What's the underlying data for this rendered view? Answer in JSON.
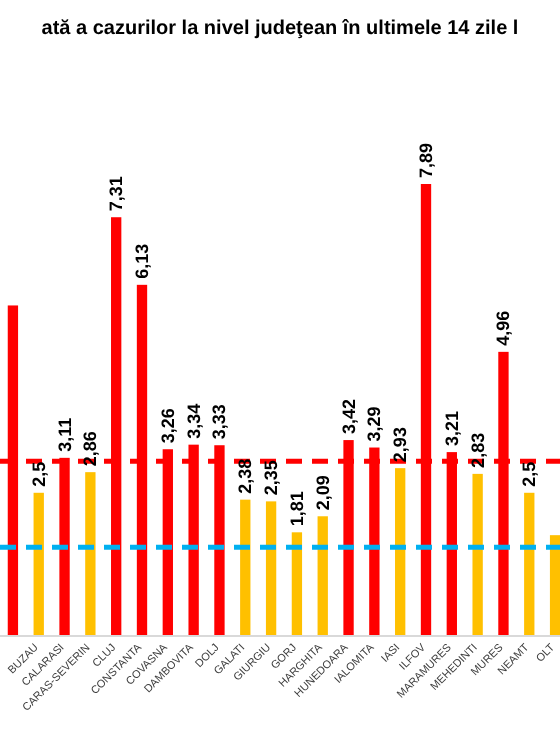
{
  "chart_data": {
    "type": "bar",
    "title": "ată a cazurilor la nivel judeţean în ultimele 14 zile l",
    "categories": [
      null,
      "BUZAU",
      "CALARASI",
      "CARAS-SEVERIN",
      "CLUJ",
      "CONSTANTA",
      "COVASNA",
      "DAMBOVITA",
      "DOLJ",
      "GALATI",
      "GIURGIU",
      "GORJ",
      "HARGHITA",
      "HUNEDOARA",
      "IALOMITA",
      "IASI",
      "ILFOV",
      "MARAMURES",
      "MEHEDINTI",
      "MURES",
      "NEAMT",
      "OLT"
    ],
    "values": [
      5.77,
      2.5,
      3.11,
      2.86,
      7.31,
      6.13,
      3.26,
      3.34,
      3.33,
      2.38,
      2.35,
      1.81,
      2.09,
      3.42,
      3.29,
      2.93,
      7.89,
      3.21,
      2.83,
      4.96,
      2.5,
      1.76
    ],
    "value_labels": [
      null,
      "2,5",
      "3,11",
      "2,86",
      "7,31",
      "6,13",
      "3,26",
      "3,34",
      "3,33",
      "2,38",
      "2,35",
      "1,81",
      "2,09",
      "3,42",
      "3,29",
      "2,93",
      "7,89",
      "3,21",
      "2,83",
      "4,96",
      "2,5",
      null
    ],
    "colors": [
      "#ff0000",
      "#ffc000",
      "#ff0000",
      "#ffc000",
      "#ff0000",
      "#ff0000",
      "#ff0000",
      "#ff0000",
      "#ff0000",
      "#ffc000",
      "#ffc000",
      "#ffc000",
      "#ffc000",
      "#ff0000",
      "#ff0000",
      "#ffc000",
      "#ff0000",
      "#ff0000",
      "#ffc000",
      "#ff0000",
      "#ffc000",
      "#ffc000"
    ],
    "ref_lines": [
      {
        "axis": "y",
        "value": 3.05,
        "color": "#ff0000",
        "line_style": "dashed"
      },
      {
        "axis": "y",
        "value": 1.55,
        "color": "#00b0f0",
        "line_style": "dashed"
      }
    ]
  }
}
